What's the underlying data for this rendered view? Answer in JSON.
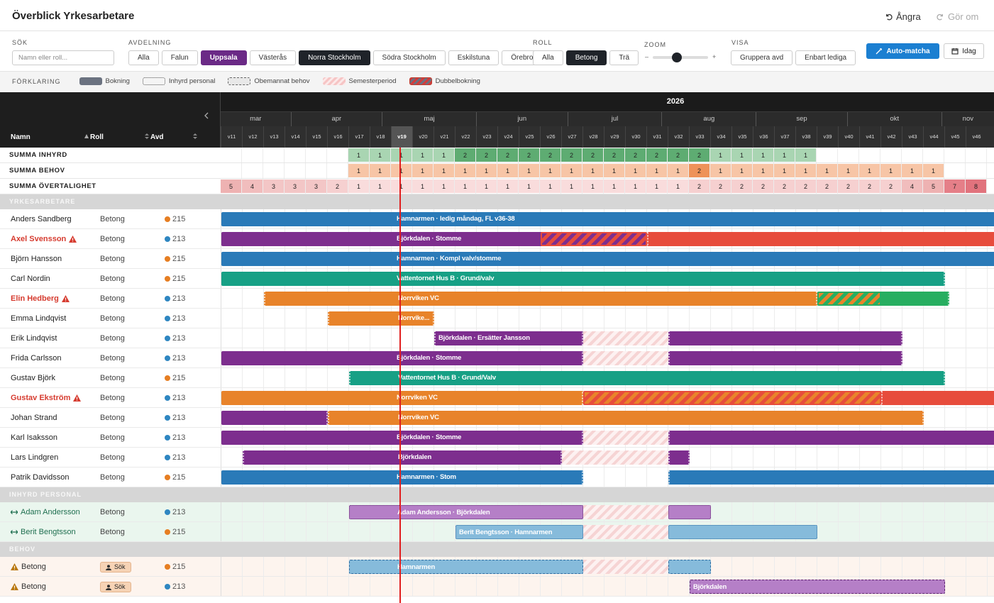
{
  "header": {
    "title": "Överblick Yrkesarbetare",
    "undo": "Ångra",
    "redo": "Gör om"
  },
  "toolbar": {
    "search": {
      "label": "SÖK",
      "placeholder": "Namn eller roll..."
    },
    "department": {
      "label": "AVDELNING",
      "options": [
        {
          "text": "Alla"
        },
        {
          "text": "Falun"
        },
        {
          "text": "Uppsala",
          "active": "purple"
        },
        {
          "text": "Västerås"
        },
        {
          "text": "Norra Stockholm",
          "active": "dark"
        },
        {
          "text": "Södra Stockholm"
        },
        {
          "text": "Eskilstuna"
        },
        {
          "text": "Örebro"
        }
      ]
    },
    "role": {
      "label": "ROLL",
      "options": [
        {
          "text": "Alla"
        },
        {
          "text": "Betong",
          "active": "dark"
        },
        {
          "text": "Trä"
        }
      ]
    },
    "zoom": {
      "label": "ZOOM",
      "minus": "–",
      "plus": "+",
      "value": 0.35
    },
    "view": {
      "label": "VISA",
      "options": [
        "Gruppera avd",
        "Enbart lediga"
      ]
    },
    "auto_match": "Auto-matcha",
    "today": "Idag"
  },
  "legend": {
    "label": "FÖRKLARING",
    "items": [
      {
        "text": "Bokning",
        "style": "booking"
      },
      {
        "text": "Inhyrd personal",
        "style": "hired"
      },
      {
        "text": "Obemannat behov",
        "style": "need"
      },
      {
        "text": "Semesterperiod",
        "style": "vacation"
      },
      {
        "text": "Dubbelbokning",
        "style": "double"
      }
    ]
  },
  "grid": {
    "columns": {
      "name": "Namn",
      "role": "Roll",
      "dept": "Avd"
    },
    "year": "2026",
    "months": [
      "mar",
      "apr",
      "maj",
      "jun",
      "jul",
      "aug",
      "sep",
      "okt",
      "nov"
    ],
    "weeks": [
      "v11",
      "v12",
      "v13",
      "v14",
      "v15",
      "v16",
      "v17",
      "v18",
      "v19",
      "v20",
      "v21",
      "v22",
      "v23",
      "v24",
      "v25",
      "v26",
      "v27",
      "v28",
      "v29",
      "v30",
      "v31",
      "v32",
      "v33",
      "v34",
      "v35",
      "v36",
      "v37",
      "v38",
      "v39",
      "v40",
      "v41",
      "v42",
      "v43",
      "v44",
      "v45",
      "v46"
    ],
    "current_week": 8,
    "dept_colors": {
      "215": "#e67e22",
      "213": "#2e86c1"
    },
    "summaries": [
      {
        "label": "SUMMA INHYRD",
        "palette": [
          "#a9d5b2",
          "#5eac72"
        ],
        "values": [
          null,
          null,
          null,
          null,
          null,
          null,
          1,
          1,
          1,
          1,
          1,
          2,
          2,
          2,
          2,
          2,
          2,
          2,
          2,
          2,
          2,
          2,
          2,
          1,
          1,
          1,
          1,
          1,
          null,
          null,
          null,
          null,
          null,
          null,
          null,
          null
        ]
      },
      {
        "label": "SUMMA BEHOV",
        "palette": [
          "#f7c5a6",
          "#ee9259"
        ],
        "values": [
          null,
          null,
          null,
          null,
          null,
          null,
          1,
          1,
          1,
          1,
          1,
          1,
          1,
          1,
          1,
          1,
          1,
          1,
          1,
          1,
          1,
          1,
          2,
          1,
          1,
          1,
          1,
          1,
          1,
          1,
          1,
          1,
          1,
          1,
          null,
          null
        ]
      },
      {
        "label": "SUMMA ÖVERTALIGHET",
        "palette": [
          "#f9dcdc",
          "#f6d0d0",
          "#f3c6c6",
          "#f1bdbd",
          "#eeb2b2",
          "#eaa5a5",
          "#e57f88",
          "#e1737d"
        ],
        "values": [
          5,
          4,
          3,
          3,
          3,
          2,
          1,
          1,
          1,
          1,
          1,
          1,
          1,
          1,
          1,
          1,
          1,
          1,
          1,
          1,
          1,
          1,
          2,
          2,
          2,
          2,
          2,
          2,
          2,
          2,
          2,
          2,
          4,
          5,
          7,
          8
        ]
      }
    ],
    "sections": [
      {
        "title": "YRKESARBETARE",
        "kind": "worker",
        "rows": [
          {
            "name": "Anders Sandberg",
            "role": "Betong",
            "dept": "215",
            "bookings": [
              {
                "kind": "booking",
                "start": 0,
                "end": 37,
                "color": "#2a7ab8",
                "label": "Hamnarmen · ledig måndag, FL v36-38"
              }
            ]
          },
          {
            "name": "Axel Svensson",
            "role": "Betong",
            "dept": "213",
            "warning": true,
            "bookings": [
              {
                "kind": "booking",
                "start": 0,
                "end": 20,
                "color": "#7d2e8e",
                "label": "Björkdalen · Stomme"
              },
              {
                "kind": "booking",
                "start": 20,
                "end": 37,
                "color": "#e74c3c"
              },
              {
                "kind": "double",
                "start": 15,
                "end": 20,
                "colors": [
                  "#7d2e8e",
                  "#e74c3c"
                ]
              }
            ]
          },
          {
            "name": "Björn Hansson",
            "role": "Betong",
            "dept": "215",
            "bookings": [
              {
                "kind": "booking",
                "start": 0,
                "end": 37,
                "color": "#2a7ab8",
                "label": "Hamnarmen · Kompl valv/stomme"
              }
            ]
          },
          {
            "name": "Carl Nordin",
            "role": "Betong",
            "dept": "215",
            "bookings": [
              {
                "kind": "booking",
                "start": 0,
                "end": 34,
                "color": "#17a085",
                "label": "Vattentornet Hus B · Grund/valv"
              }
            ]
          },
          {
            "name": "Elin Hedberg",
            "role": "Betong",
            "dept": "213",
            "warning": true,
            "bookings": [
              {
                "kind": "booking",
                "start": 2,
                "end": 28,
                "color": "#e8832a",
                "label": "Norrviken VC"
              },
              {
                "kind": "booking",
                "start": 28,
                "end": 34.2,
                "color": "#27ae60"
              },
              {
                "kind": "double",
                "start": 28,
                "end": 31,
                "colors": [
                  "#e8832a",
                  "#27ae60"
                ]
              }
            ]
          },
          {
            "name": "Emma Lindqvist",
            "role": "Betong",
            "dept": "213",
            "bookings": [
              {
                "kind": "booking",
                "start": 5,
                "end": 10,
                "color": "#e8832a",
                "label": "Norrvike..."
              }
            ]
          },
          {
            "name": "Erik Lindqvist",
            "role": "Betong",
            "dept": "213",
            "bookings": [
              {
                "kind": "booking",
                "start": 10,
                "end": 17,
                "color": "#7d2e8e",
                "label": "Björkdalen · Ersätter Jansson"
              },
              {
                "kind": "vacation",
                "start": 17,
                "end": 21
              },
              {
                "kind": "booking",
                "start": 21,
                "end": 32,
                "color": "#7d2e8e"
              }
            ]
          },
          {
            "name": "Frida Carlsson",
            "role": "Betong",
            "dept": "213",
            "bookings": [
              {
                "kind": "booking",
                "start": 0,
                "end": 17,
                "color": "#7d2e8e",
                "label": "Björkdalen · Stomme"
              },
              {
                "kind": "vacation",
                "start": 17,
                "end": 21
              },
              {
                "kind": "booking",
                "start": 21,
                "end": 32,
                "color": "#7d2e8e"
              }
            ]
          },
          {
            "name": "Gustav Björk",
            "role": "Betong",
            "dept": "215",
            "bookings": [
              {
                "kind": "booking",
                "start": 6,
                "end": 34,
                "color": "#17a085",
                "label": "Vattentornet Hus B · Grund/Valv"
              }
            ]
          },
          {
            "name": "Gustav Ekström",
            "role": "Betong",
            "dept": "213",
            "warning": true,
            "bookings": [
              {
                "kind": "booking",
                "start": 0,
                "end": 17,
                "color": "#e8832a",
                "label": "Norrviken VC"
              },
              {
                "kind": "booking",
                "start": 31,
                "end": 37,
                "color": "#e74c3c"
              },
              {
                "kind": "double",
                "start": 17,
                "end": 31,
                "colors": [
                  "#e8832a",
                  "#e74c3c"
                ]
              }
            ]
          },
          {
            "name": "Johan Strand",
            "role": "Betong",
            "dept": "213",
            "bookings": [
              {
                "kind": "booking",
                "start": 0,
                "end": 5,
                "color": "#7d2e8e"
              },
              {
                "kind": "booking",
                "start": 5,
                "end": 33,
                "color": "#e8832a",
                "label": "Norrviken VC"
              }
            ]
          },
          {
            "name": "Karl Isaksson",
            "role": "Betong",
            "dept": "213",
            "bookings": [
              {
                "kind": "booking",
                "start": 0,
                "end": 17,
                "color": "#7d2e8e",
                "label": "Björkdalen · Stomme"
              },
              {
                "kind": "vacation",
                "start": 17,
                "end": 21
              },
              {
                "kind": "booking",
                "start": 21,
                "end": 37,
                "color": "#7d2e8e"
              }
            ]
          },
          {
            "name": "Lars Lindgren",
            "role": "Betong",
            "dept": "213",
            "bookings": [
              {
                "kind": "booking",
                "start": 1,
                "end": 16,
                "color": "#7d2e8e",
                "label": "Björkdalen"
              },
              {
                "kind": "vacation",
                "start": 16,
                "end": 21
              },
              {
                "kind": "booking",
                "start": 21,
                "end": 22,
                "color": "#7d2e8e"
              }
            ]
          },
          {
            "name": "Patrik Davidsson",
            "role": "Betong",
            "dept": "215",
            "bookings": [
              {
                "kind": "booking",
                "start": 0,
                "end": 17,
                "color": "#2a7ab8",
                "label": "Hamnarmen · Stom"
              },
              {
                "kind": "booking",
                "start": 21,
                "end": 37,
                "color": "#2a7ab8"
              }
            ]
          }
        ]
      },
      {
        "title": "INHYRD PERSONAL",
        "kind": "hired",
        "rows": [
          {
            "name": "Adam Andersson",
            "role": "Betong",
            "dept": "213",
            "bookings": [
              {
                "kind": "hired",
                "start": 6,
                "end": 17,
                "color": "#b57fc7",
                "border": "#5e2470",
                "label": "Adam Andersson · Björkdalen"
              },
              {
                "kind": "vacation",
                "start": 17,
                "end": 21
              },
              {
                "kind": "hired",
                "start": 21,
                "end": 23,
                "color": "#b57fc7",
                "border": "#5e2470"
              }
            ]
          },
          {
            "name": "Berit Bengtsson",
            "role": "Betong",
            "dept": "215",
            "bookings": [
              {
                "kind": "hired",
                "start": 11,
                "end": 17,
                "color": "#86bbdb",
                "border": "#2f6ea3",
                "label": "Berit Bengtsson · Hamnarmen"
              },
              {
                "kind": "vacation",
                "start": 17,
                "end": 21
              },
              {
                "kind": "hired",
                "start": 21,
                "end": 28,
                "color": "#86bbdb",
                "border": "#2f6ea3"
              }
            ]
          }
        ]
      },
      {
        "title": "BEHOV",
        "kind": "need",
        "rows": [
          {
            "name": "Betong",
            "role": "Sök",
            "dept": "215",
            "bookings": [
              {
                "kind": "need",
                "start": 6,
                "end": 17,
                "color": "#86bbdb",
                "border": "#2f6ea3",
                "label": "Hamnarmen"
              },
              {
                "kind": "vacation",
                "start": 17,
                "end": 21
              },
              {
                "kind": "need",
                "start": 21,
                "end": 23,
                "color": "#86bbdb",
                "border": "#2f6ea3"
              }
            ]
          },
          {
            "name": "Betong",
            "role": "Sök",
            "dept": "213",
            "bookings": [
              {
                "kind": "need",
                "start": 22,
                "end": 34,
                "color": "#b57fc7",
                "border": "#5e2470",
                "label": "Björkdalen"
              }
            ]
          }
        ]
      }
    ]
  }
}
